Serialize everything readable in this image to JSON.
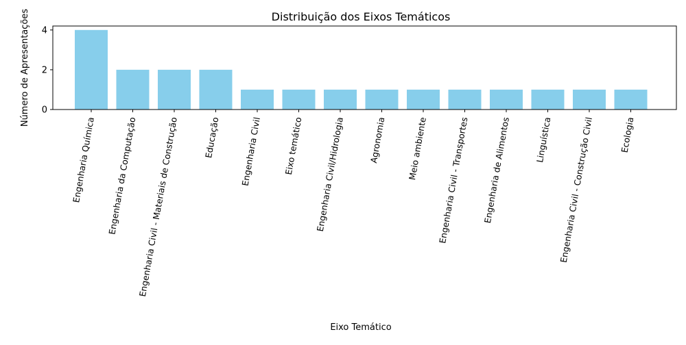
{
  "chart_data": {
    "type": "bar",
    "title": "Distribuição dos Eixos Temáticos",
    "xlabel": "Eixo Temático",
    "ylabel": "Número de Apresentações",
    "categories": [
      "Engenharia Química",
      "Engenharia da Computação",
      "Engenharia Civil - Materiais de Construção",
      "Educação",
      "Engenharia Civil",
      "Eixo temático",
      "Engenharia Civil/Hidrologia",
      "Agronomia",
      "Meio ambiente",
      "Engenharia Civil - Transportes",
      "Engenharia de Alimentos",
      "Linguística",
      "Engenharia Civil - Construção Civil",
      "Ecologia"
    ],
    "values": [
      4,
      2,
      2,
      2,
      1,
      1,
      1,
      1,
      1,
      1,
      1,
      1,
      1,
      1
    ],
    "yticks": [
      "0",
      "2",
      "4"
    ],
    "ylim": [
      0,
      4.2
    ],
    "grid": false,
    "bar_color": "#87ceeb"
  }
}
